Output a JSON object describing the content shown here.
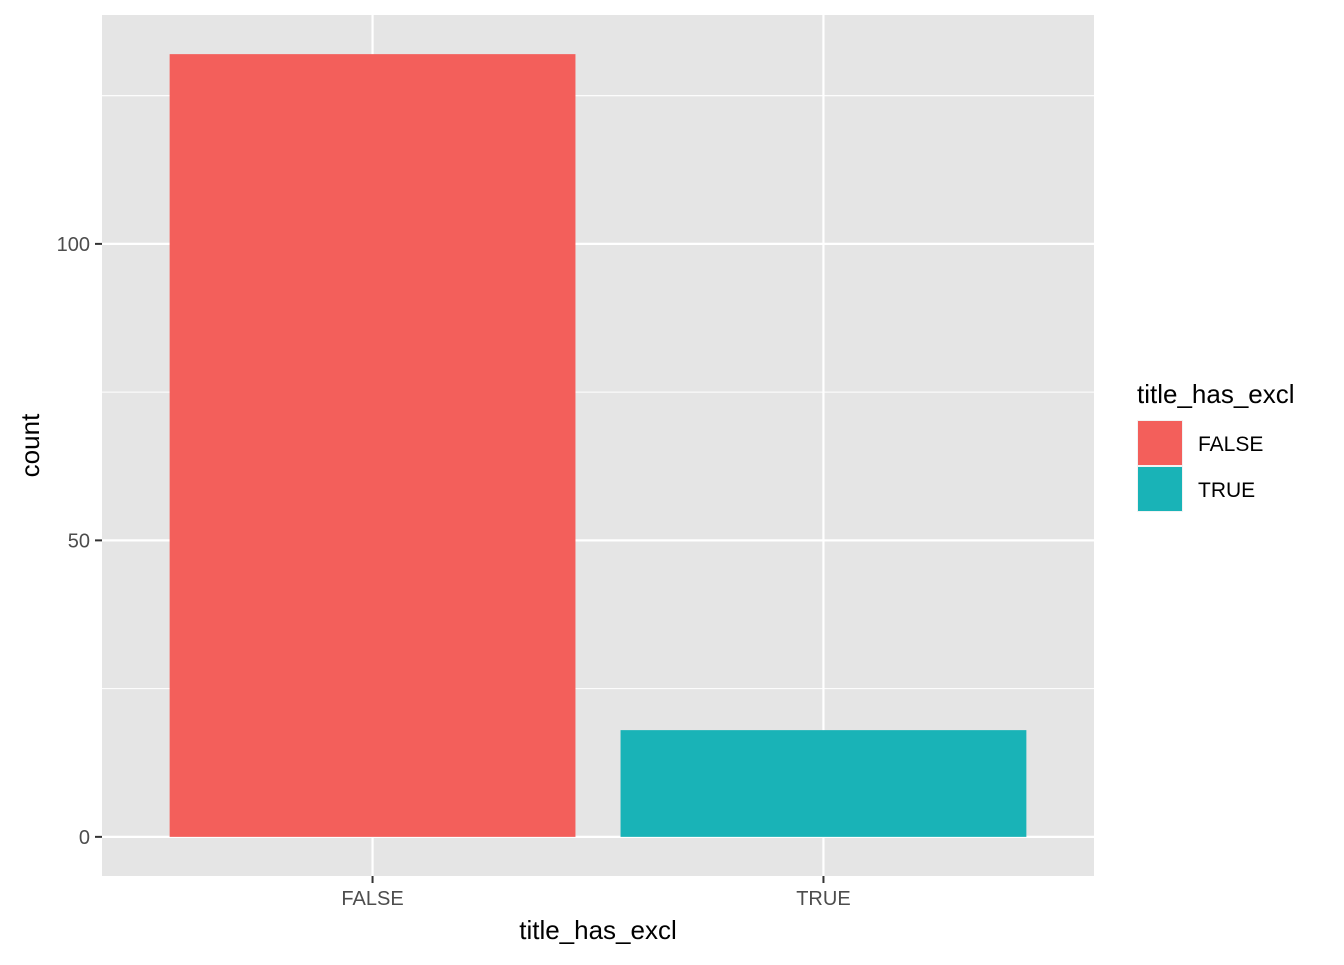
{
  "chart_data": {
    "type": "bar",
    "categories": [
      "FALSE",
      "TRUE"
    ],
    "values": [
      132,
      18
    ],
    "colors": [
      "#F35F5B",
      "#19B3B7"
    ],
    "xlabel": "title_has_excl",
    "ylabel": "count",
    "ylim": [
      -6.6,
      138.6
    ],
    "yticks": [
      0,
      50,
      100
    ],
    "ytick_labels": [
      "0",
      "50",
      "100"
    ],
    "legend": {
      "title": "title_has_excl",
      "position": "right",
      "items": [
        {
          "label": "FALSE",
          "color": "#F35F5B"
        },
        {
          "label": "TRUE",
          "color": "#19B3B7"
        }
      ]
    },
    "panel_background": "#E5E5E5",
    "grid_color": "#FFFFFF",
    "grid": true
  }
}
